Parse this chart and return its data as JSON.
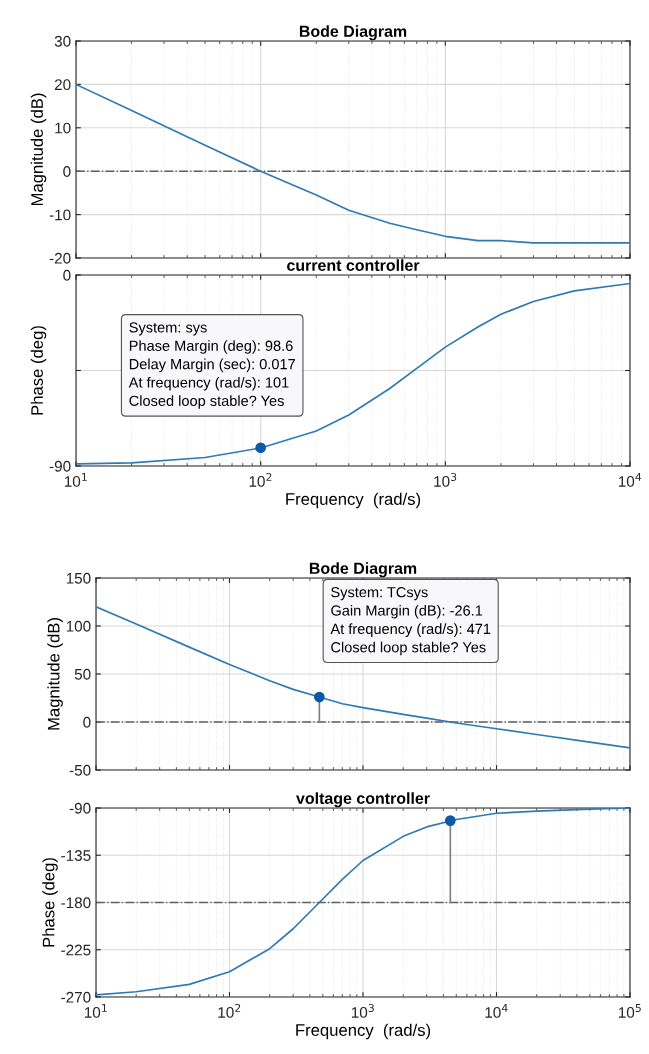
{
  "chart_data": [
    {
      "type": "line",
      "title": "Bode Diagram",
      "ylabel": "Magnitude (dB)",
      "log": "x",
      "grid": true,
      "tick_labels": "y",
      "xlim": [
        10,
        10000
      ],
      "xticks": [
        10,
        100,
        1000,
        10000
      ],
      "ylim": [
        -20,
        30
      ],
      "yticks": [
        -20,
        -10,
        0,
        10,
        20,
        30
      ],
      "series": [
        {
          "color": "#2f7ab5",
          "x": [
            10,
            20,
            50,
            100,
            200,
            300,
            500,
            700,
            1000,
            1500,
            2000,
            3000,
            5000,
            10000
          ],
          "values": [
            20,
            14,
            6,
            0,
            -5.5,
            -9,
            -12,
            -13.5,
            -15,
            -16,
            -16,
            -16.5,
            -16.5,
            -16.5
          ]
        }
      ],
      "ref_lines": [
        {
          "axis": "y",
          "value": 0,
          "color": "#606060",
          "line_style": "dashdot"
        }
      ]
    },
    {
      "type": "line",
      "title": "current controller",
      "xlabel": "Frequency  (rad/s)",
      "ylabel": "Phase (deg)",
      "log": "x",
      "grid": true,
      "xlim": [
        10,
        10000
      ],
      "xticks": [
        {
          "value": 10,
          "label": "10$^{1}$"
        },
        {
          "value": 100,
          "label": "10$^{2}$"
        },
        {
          "value": 1000,
          "label": "10$^{3}$"
        },
        {
          "value": 10000,
          "label": "10$^{4}$"
        }
      ],
      "ylim": [
        -90,
        0
      ],
      "yticks": [
        -90,
        {
          "value": -45,
          "label": null
        },
        0
      ],
      "series": [
        {
          "color": "#2f7ab5",
          "x": [
            10,
            20,
            50,
            100,
            200,
            300,
            500,
            700,
            1000,
            1500,
            2000,
            3000,
            5000,
            10000
          ],
          "values": [
            -89,
            -88.5,
            -86,
            -81.5,
            -73.5,
            -66,
            -53.5,
            -44,
            -34,
            -24.5,
            -18.5,
            -12.5,
            -7.5,
            -4
          ]
        },
        {
          "type": "scatter",
          "marker": "circle",
          "color": "#0b5aa6",
          "x": [
            100
          ],
          "values": [
            -81.4
          ]
        }
      ],
      "annotations": [
        {
          "text": "System: sys\nPhase Margin (deg): 98.6\nDelay Margin (sec): 0.017\nAt frequency (rad/s): 101\nClosed loop stable? Yes",
          "x": 100,
          "y": -81.4
        }
      ]
    },
    {
      "type": "line",
      "title": "Bode Diagram",
      "ylabel": "Magnitude (dB)",
      "log": "x",
      "grid": true,
      "tick_labels": "y",
      "xlim": [
        10,
        100000
      ],
      "xticks": [
        10,
        100,
        1000,
        10000,
        100000
      ],
      "ylim": [
        -50,
        150
      ],
      "yticks": [
        -50,
        0,
        50,
        100,
        150
      ],
      "series": [
        {
          "color": "#2f7ab5",
          "x": [
            10,
            20,
            50,
            100,
            200,
            300,
            471,
            700,
            1000,
            2000,
            3000,
            5000,
            10000,
            20000,
            50000,
            100000
          ],
          "values": [
            120,
            102,
            78,
            60,
            43,
            34,
            26,
            19,
            15,
            8,
            4,
            -1,
            -7,
            -13,
            -21,
            -27
          ]
        },
        {
          "type": "line",
          "color": "#808080",
          "x": [
            471,
            471
          ],
          "values": [
            0,
            26
          ]
        },
        {
          "type": "scatter",
          "marker": "circle",
          "color": "#0b5aa6",
          "x": [
            471
          ],
          "values": [
            26
          ]
        }
      ],
      "ref_lines": [
        {
          "axis": "y",
          "value": 0,
          "color": "#606060",
          "line_style": "dashdot"
        }
      ],
      "annotations": [
        {
          "text": "System: TCsys\nGain Margin (dB): -26.1\nAt frequency (rad/s): 471\nClosed loop stable? Yes",
          "x": 471,
          "y": 26.1
        }
      ]
    },
    {
      "type": "line",
      "title": "voltage controller",
      "xlabel": "Frequency  (rad/s)",
      "ylabel": "Phase (deg)",
      "log": "x",
      "grid": true,
      "xlim": [
        10,
        100000
      ],
      "xticks": [
        {
          "value": 10,
          "label": "10$^{1}$"
        },
        {
          "value": 100,
          "label": "10$^{2}$"
        },
        {
          "value": 1000,
          "label": "10$^{3}$"
        },
        {
          "value": 10000,
          "label": "10$^{4}$"
        },
        {
          "value": 100000,
          "label": "10$^{5}$"
        }
      ],
      "ylim": [
        -270,
        -90
      ],
      "yticks": [
        -270,
        -225,
        -180,
        -135,
        -90
      ],
      "series": [
        {
          "color": "#2f7ab5",
          "x": [
            10,
            20,
            50,
            100,
            200,
            300,
            471,
            700,
            1000,
            2000,
            3000,
            5000,
            10000,
            20000,
            50000,
            100000
          ],
          "values": [
            -268,
            -265,
            -258,
            -246,
            -224,
            -205,
            -180,
            -158,
            -140,
            -117,
            -108,
            -101,
            -95,
            -93,
            -91,
            -90
          ]
        },
        {
          "type": "line",
          "color": "#808080",
          "x": [
            4510,
            4510
          ],
          "values": [
            -180,
            -102
          ]
        },
        {
          "type": "scatter",
          "marker": "circle",
          "color": "#0b5aa6",
          "x": [
            4510
          ],
          "values": [
            -102
          ]
        }
      ],
      "ref_lines": [
        {
          "axis": "y",
          "value": -180,
          "color": "#606060",
          "line_style": "dashdot"
        }
      ]
    }
  ]
}
